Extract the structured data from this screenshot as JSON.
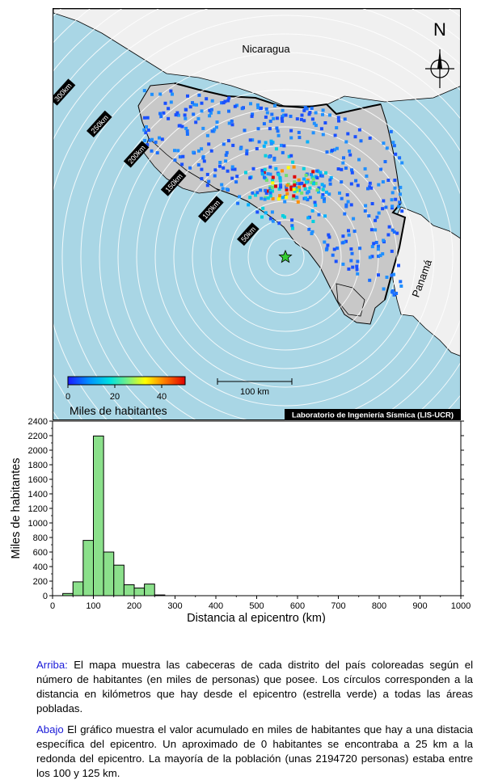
{
  "map": {
    "labels": {
      "nicaragua": "Nicaragua",
      "panama": "Panamá",
      "north": "N"
    },
    "ring_labels": [
      "50km",
      "100km",
      "150km",
      "200km",
      "250km",
      "300km",
      "350km",
      "400km"
    ],
    "colorbar": {
      "title": "Miles de habitantes",
      "ticks": [
        "0",
        "20",
        "40"
      ],
      "range": [
        0,
        50
      ],
      "colors": [
        "#1a1aff",
        "#00a0ff",
        "#00e0e0",
        "#7ff07f",
        "#ffff00",
        "#ff8000",
        "#e00000"
      ]
    },
    "scalebar_label": "100 km",
    "credit": "Laboratorio de Ingeniería Sísmica (LIS-UCR)",
    "colors": {
      "sea": "#a9d6e5",
      "land_neighbor": "#f0f0f0",
      "land_cr": "#c8c8c8",
      "star": "#33cc33"
    }
  },
  "chart_data": {
    "type": "bar",
    "xlabel": "Distancia al epicentro (km)",
    "ylabel": "Miles de habitantes",
    "xlim": [
      0,
      1000
    ],
    "ylim": [
      0,
      2400
    ],
    "xticks": [
      0,
      100,
      200,
      300,
      400,
      500,
      600,
      700,
      800,
      900,
      1000
    ],
    "yticks": [
      0,
      200,
      400,
      600,
      800,
      1000,
      1200,
      1400,
      1600,
      1800,
      2000,
      2200,
      2400
    ],
    "bin_width": 25,
    "bins": [
      {
        "x0": 25,
        "value": 30
      },
      {
        "x0": 50,
        "value": 190
      },
      {
        "x0": 75,
        "value": 760
      },
      {
        "x0": 100,
        "value": 2195
      },
      {
        "x0": 125,
        "value": 600
      },
      {
        "x0": 150,
        "value": 420
      },
      {
        "x0": 175,
        "value": 150
      },
      {
        "x0": 200,
        "value": 105
      },
      {
        "x0": 225,
        "value": 160
      },
      {
        "x0": 250,
        "value": 10
      }
    ],
    "bar_color": "#8be08b"
  },
  "captions": {
    "top_lead": "Arriba:",
    "top_text": " El mapa muestra las cabeceras de cada distrito del país coloreadas según el número de habitantes (en miles de personas) que posee.  Los círculos corresponden a la distancia en kilómetros que hay desde el epicentro (estrella verde) a todas las áreas pobladas.",
    "bottom_lead": "Abajo",
    "bottom_text": " El gráfico muestra el valor acumulado en miles de habitantes que hay a una distacia específica del epicentro.  Un aproximado de 0 habitantes se encontraba a 25 km a la redonda del epicentro.  La mayoría de la población (unas 2194720 personas) estaba entre los 100 y 125 km."
  }
}
